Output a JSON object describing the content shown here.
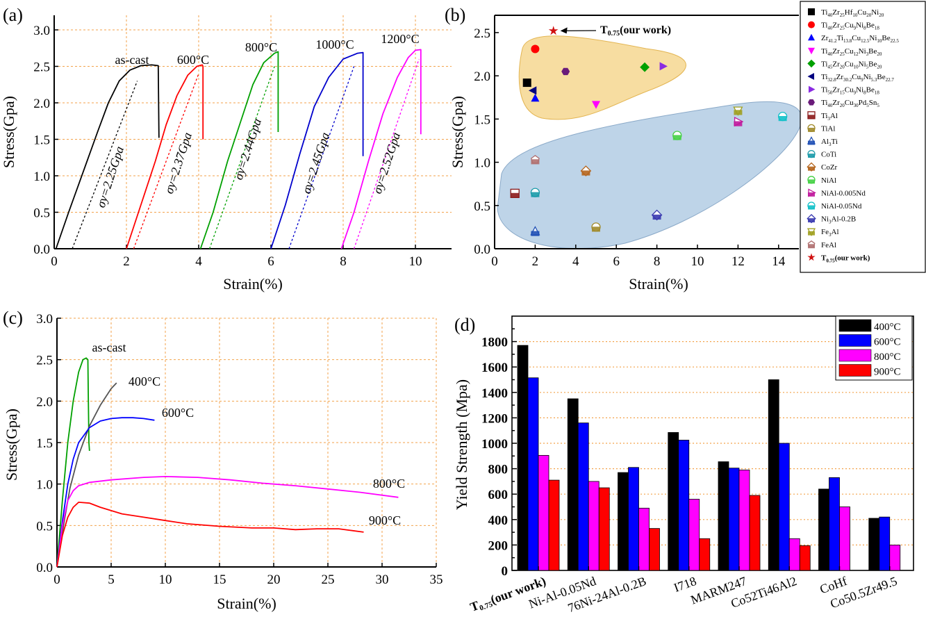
{
  "chart_data": [
    {
      "panel": "(a)",
      "type": "line",
      "xlabel": "Strain(%)",
      "ylabel": "Stress(Gpa)",
      "xlim": [
        0,
        11
      ],
      "ylim": [
        0,
        3.2
      ],
      "xticks": [
        "0",
        "2",
        "4",
        "6",
        "8",
        "10"
      ],
      "yticks": [
        "0.0",
        "0.5",
        "1.0",
        "1.5",
        "2.0",
        "2.5",
        "3.0"
      ],
      "grid": true,
      "series": [
        {
          "name": "as-cast",
          "color": "#000000",
          "x": [
            0.05,
            0.4,
            0.8,
            1.2,
            1.5,
            1.8,
            2.1,
            2.4,
            2.7,
            2.88,
            2.9,
            2.9
          ],
          "y": [
            0.0,
            0.5,
            1.05,
            1.6,
            2.0,
            2.3,
            2.45,
            2.51,
            2.52,
            2.51,
            1.55,
            1.52
          ],
          "annotation": "σy=2.25Gpa",
          "offset_line": {
            "x": [
              0.5,
              2.3
            ],
            "y": [
              0.0,
              2.3
            ]
          }
        },
        {
          "name": "600°C",
          "color": "#ff0000",
          "x": [
            2.0,
            2.4,
            2.8,
            3.1,
            3.4,
            3.7,
            3.95,
            4.1,
            4.12,
            4.12
          ],
          "y": [
            0.0,
            0.6,
            1.2,
            1.7,
            2.1,
            2.38,
            2.5,
            2.52,
            2.5,
            1.5
          ],
          "annotation": "σy=2.37Gpa",
          "offset_line": {
            "x": [
              2.2,
              4.0
            ],
            "y": [
              0.0,
              2.4
            ]
          }
        },
        {
          "name": "800°C",
          "color": "#00a000",
          "x": [
            4.05,
            4.4,
            4.8,
            5.2,
            5.5,
            5.8,
            6.1,
            6.2,
            6.2
          ],
          "y": [
            0.0,
            0.5,
            1.2,
            1.8,
            2.25,
            2.55,
            2.68,
            2.7,
            1.6
          ],
          "annotation": "σy=2.44Gpa",
          "offset_line": {
            "x": [
              4.3,
              6.1
            ],
            "y": [
              0.0,
              2.5
            ]
          }
        },
        {
          "name": "1000°C",
          "color": "#0000cc",
          "x": [
            6.0,
            6.4,
            6.8,
            7.2,
            7.6,
            8.0,
            8.4,
            8.55,
            8.55
          ],
          "y": [
            0.0,
            0.6,
            1.3,
            1.95,
            2.35,
            2.6,
            2.68,
            2.69,
            1.27
          ],
          "annotation": "σy=2.45Gpa",
          "offset_line": {
            "x": [
              6.5,
              8.3
            ],
            "y": [
              0.0,
              2.5
            ]
          }
        },
        {
          "name": "1200°C",
          "color": "#ff00ff",
          "x": [
            7.95,
            8.3,
            8.7,
            9.1,
            9.5,
            9.8,
            10.0,
            10.15,
            10.15
          ],
          "y": [
            0.0,
            0.5,
            1.2,
            1.85,
            2.35,
            2.62,
            2.72,
            2.73,
            1.57
          ],
          "annotation": "σy=2.52Gpa",
          "offset_line": {
            "x": [
              8.3,
              10.1
            ],
            "y": [
              0.0,
              2.6
            ]
          }
        }
      ]
    },
    {
      "panel": "(b)",
      "type": "scatter",
      "xlabel": "Strain(%)",
      "ylabel": "Stress(Gpa)",
      "xlim": [
        0,
        15
      ],
      "ylim": [
        0,
        2.7
      ],
      "xticks": [
        "0",
        "2",
        "4",
        "6",
        "8",
        "10",
        "12",
        "14"
      ],
      "yticks": [
        "0.0",
        "0.5",
        "1.0",
        "1.5",
        "2.0",
        "2.5"
      ],
      "annotation": "T0.75(our work)",
      "legend_position": "right",
      "series": [
        {
          "name": "Ti40Zr25Hf10Cu20Ni20",
          "legend": [
            "Ti",
            "40",
            "Zr",
            "25",
            "Hf",
            "10",
            "Cu",
            "20",
            "Ni",
            "20"
          ],
          "marker": "square",
          "color": "#000000",
          "x": [
            1.6
          ],
          "y": [
            1.92
          ]
        },
        {
          "name": "Ti40Zr25Cu9Ni8Be18",
          "legend": [
            "Ti",
            "40",
            "Zr",
            "25",
            "Cu",
            "9",
            "Ni",
            "8",
            "Be",
            "18"
          ],
          "marker": "circle",
          "color": "#ff0000",
          "x": [
            2.0
          ],
          "y": [
            2.31
          ]
        },
        {
          "name": "Zr41.2Ti13.8Cu12.5Ni10Be22.5",
          "legend": [
            "Zr",
            "41.2",
            "Ti",
            "13.8",
            "Cu",
            "12.5",
            "Ni",
            "10",
            "Be",
            "22.5"
          ],
          "marker": "triangle-up",
          "color": "#0000ff",
          "x": [
            2.0
          ],
          "y": [
            1.74
          ]
        },
        {
          "name": "Ti40Zr25Cu12Ni3Be20",
          "legend": [
            "Ti",
            "40",
            "Zr",
            "25",
            "Cu",
            "12",
            "Ni",
            "3",
            "Be",
            "20"
          ],
          "marker": "triangle-down",
          "color": "#ff00ff",
          "x": [
            5.0
          ],
          "y": [
            1.67
          ]
        },
        {
          "name": "Ti45Zr20Cu10Ni5Be20",
          "legend": [
            "Ti",
            "45",
            "Zr",
            "20",
            "Cu",
            "10",
            "Ni",
            "5",
            "Be",
            "20"
          ],
          "marker": "diamond",
          "color": "#00a000",
          "x": [
            7.4
          ],
          "y": [
            2.1
          ]
        },
        {
          "name": "Ti32.8Zr30.2Cu9Ni5.3Be22.7",
          "legend": [
            "Ti",
            "32.8",
            "Zr",
            "30.2",
            "Cu",
            "9",
            "Ni",
            "5.3",
            "Be",
            "22.7"
          ],
          "marker": "triangle-left",
          "color": "#000080",
          "x": [
            1.9
          ],
          "y": [
            1.83
          ]
        },
        {
          "name": "Ti50Zr15Cu9Ni8Be18",
          "legend": [
            "Ti",
            "50",
            "Zr",
            "15",
            "Cu",
            "9",
            "Ni",
            "8",
            "Be",
            "18"
          ],
          "marker": "triangle-right",
          "color": "#8a2be2",
          "x": [
            8.3
          ],
          "y": [
            2.11
          ]
        },
        {
          "name": "Ti40Zr20Cu30Pd5Sn5",
          "legend": [
            "Ti",
            "40",
            "Zr",
            "20",
            "Cu",
            "30",
            "Pd",
            "5",
            "Sn",
            "5"
          ],
          "marker": "hexagon",
          "color": "#6a1b7a",
          "x": [
            3.5
          ],
          "y": [
            2.05
          ]
        },
        {
          "name": "Ti3Al",
          "legend": [
            "Ti",
            "3",
            "Al",
            ""
          ],
          "marker": "square-half",
          "color": "#8b1a1a",
          "x": [
            1.0
          ],
          "y": [
            0.64
          ]
        },
        {
          "name": "TiAl",
          "legend": [
            "TiAl"
          ],
          "marker": "circle-half",
          "color": "#a08a2a",
          "x": [
            5.0
          ],
          "y": [
            0.25
          ]
        },
        {
          "name": "Al3Ti",
          "legend": [
            "Al",
            "3",
            "Ti",
            ""
          ],
          "marker": "triangle-up-half",
          "color": "#1f4fb5",
          "x": [
            2.0
          ],
          "y": [
            0.2
          ]
        },
        {
          "name": "CoTi",
          "legend": [
            "CoTi"
          ],
          "marker": "circle-half",
          "color": "#1a9aa8",
          "x": [
            2.0
          ],
          "y": [
            0.65
          ]
        },
        {
          "name": "CoZr",
          "legend": [
            "CoZr"
          ],
          "marker": "diamond-half",
          "color": "#b5651d",
          "x": [
            4.5
          ],
          "y": [
            0.9
          ]
        },
        {
          "name": "NiAl",
          "legend": [
            "NiAl"
          ],
          "marker": "circle-half",
          "color": "#44d044",
          "x": [
            9.0
          ],
          "y": [
            1.31
          ]
        },
        {
          "name": "NiAl-0.005Nd",
          "legend": [
            "NiAl-0.005Nd"
          ],
          "marker": "triangle-right-half",
          "color": "#c0189c",
          "x": [
            12.0
          ],
          "y": [
            1.47
          ]
        },
        {
          "name": "NiAl-0.05Nd",
          "legend": [
            "NiAl-0.05Nd"
          ],
          "marker": "circle-half",
          "color": "#10c0c8",
          "x": [
            14.2
          ],
          "y": [
            1.53
          ]
        },
        {
          "name": "Ni3Al-0.2B",
          "legend": [
            "Ni",
            "3",
            "Al-0.2B",
            ""
          ],
          "marker": "diamond-half",
          "color": "#3a3ab0",
          "x": [
            8.0
          ],
          "y": [
            0.39
          ]
        },
        {
          "name": "Fe3Al",
          "legend": [
            "Fe",
            "3",
            "Al",
            ""
          ],
          "marker": "triangle-down-half",
          "color": "#a0a020",
          "x": [
            12.0
          ],
          "y": [
            1.6
          ]
        },
        {
          "name": "FeAl",
          "legend": [
            "FeAl"
          ],
          "marker": "pentagon-half",
          "color": "#b07070",
          "x": [
            2.0
          ],
          "y": [
            1.03
          ]
        },
        {
          "name": "T0.75(our work)",
          "legend": [
            "T",
            "0.75",
            "(our work)",
            ""
          ],
          "marker": "star",
          "color": "#d01010",
          "x": [
            2.9
          ],
          "y": [
            2.52
          ]
        }
      ]
    },
    {
      "panel": "(c)",
      "type": "line",
      "xlabel": "Strain(%)",
      "ylabel": "Stress(Gpa)",
      "xlim": [
        0,
        35
      ],
      "ylim": [
        0,
        3.0
      ],
      "xticks": [
        "0",
        "5",
        "10",
        "15",
        "20",
        "25",
        "30",
        "35"
      ],
      "yticks": [
        "0.0",
        "0.5",
        "1.0",
        "1.5",
        "2.0",
        "2.5",
        "3.0"
      ],
      "grid": true,
      "series": [
        {
          "name": "as-cast",
          "color": "#00a000",
          "x": [
            0,
            0.5,
            1.0,
            1.5,
            2.0,
            2.4,
            2.7,
            2.85,
            2.9,
            2.95,
            3.0
          ],
          "y": [
            0,
            0.8,
            1.5,
            2.0,
            2.35,
            2.5,
            2.52,
            2.5,
            2.0,
            1.5,
            1.4
          ]
        },
        {
          "name": "400°C",
          "color": "#555555",
          "x": [
            0,
            0.6,
            1.2,
            2.0,
            3.0,
            4.0,
            5.0,
            5.5
          ],
          "y": [
            0,
            0.5,
            0.95,
            1.35,
            1.7,
            1.95,
            2.15,
            2.22
          ]
        },
        {
          "name": "600°C",
          "color": "#0000ff",
          "x": [
            0,
            0.5,
            1.0,
            1.5,
            2.0,
            3.0,
            4.0,
            5.0,
            6.0,
            7.0,
            8.0,
            9.0
          ],
          "y": [
            0,
            0.55,
            1.0,
            1.3,
            1.5,
            1.68,
            1.76,
            1.79,
            1.8,
            1.8,
            1.79,
            1.77
          ]
        },
        {
          "name": "800°C",
          "color": "#ff00ff",
          "x": [
            0,
            0.5,
            1.0,
            1.5,
            2.0,
            3.0,
            5.0,
            8.0,
            10.0,
            13.0,
            16.0,
            19.0,
            22.0,
            25.0,
            28.0,
            31.5
          ],
          "y": [
            0,
            0.5,
            0.8,
            0.92,
            0.98,
            1.02,
            1.05,
            1.08,
            1.09,
            1.08,
            1.05,
            1.01,
            0.98,
            0.94,
            0.9,
            0.84
          ]
        },
        {
          "name": "900°C",
          "color": "#ff0000",
          "x": [
            0,
            0.5,
            1.0,
            1.5,
            2.0,
            3.0,
            4.0,
            5.0,
            6.0,
            8.0,
            10.0,
            12.0,
            15.0,
            18.0,
            20.0,
            22.0,
            24.0,
            26.0,
            28.3
          ],
          "y": [
            0,
            0.38,
            0.6,
            0.72,
            0.78,
            0.77,
            0.72,
            0.68,
            0.64,
            0.6,
            0.56,
            0.52,
            0.49,
            0.47,
            0.47,
            0.45,
            0.46,
            0.46,
            0.42
          ]
        }
      ]
    },
    {
      "panel": "(d)",
      "type": "bar",
      "xlabel": "",
      "ylabel": "Yield Strength (Mpa)",
      "ylim": [
        0,
        2000
      ],
      "yticks": [
        "0",
        "200",
        "400",
        "600",
        "800",
        "1000",
        "1200",
        "1400",
        "1600",
        "1800"
      ],
      "legend_position": "top-right",
      "categories": [
        "T0.75(our work)",
        "Ni-Al-0.05Nd",
        "76Ni-24Al-0.2B",
        "I718",
        "MARM247",
        "Co52Ti46Al2",
        "CoHf",
        "Co50.5Zr49.5"
      ],
      "series": [
        {
          "name": "400°C",
          "color": "#000000",
          "values": [
            1770,
            1350,
            770,
            1085,
            855,
            1500,
            640,
            410
          ]
        },
        {
          "name": "600°C",
          "color": "#0000ff",
          "values": [
            1515,
            1160,
            810,
            1025,
            805,
            1000,
            730,
            420
          ]
        },
        {
          "name": "800°C",
          "color": "#ff00ff",
          "values": [
            905,
            700,
            490,
            560,
            790,
            250,
            500,
            200
          ]
        },
        {
          "name": "900°C",
          "color": "#ff0000",
          "values": [
            710,
            650,
            330,
            250,
            590,
            195,
            null,
            null
          ]
        }
      ]
    }
  ]
}
